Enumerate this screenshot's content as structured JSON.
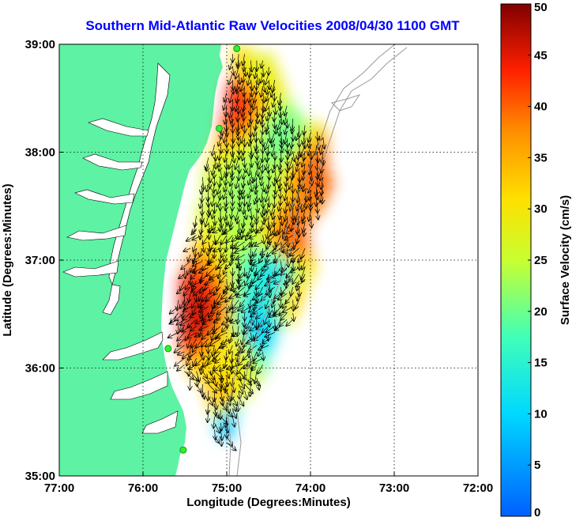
{
  "title": "Southern Mid-Atlantic Raw Velocities 2008/04/30 1100 GMT",
  "map": {
    "xlabel": "Longitude (Degrees:Minutes)",
    "ylabel": "Latitude (Degrees:Minutes)",
    "lon_range": [
      -77,
      -72
    ],
    "lat_range": [
      35,
      39
    ],
    "lon_ticks": [
      {
        "value": -77,
        "label": "77:00"
      },
      {
        "value": -76,
        "label": "76:00"
      },
      {
        "value": -75,
        "label": "75:00"
      },
      {
        "value": -74,
        "label": "74:00"
      },
      {
        "value": -73,
        "label": "73:00"
      },
      {
        "value": -72,
        "label": "72:00"
      }
    ],
    "lat_ticks": [
      {
        "value": 39,
        "label": "39:00"
      },
      {
        "value": 38,
        "label": "38:00"
      },
      {
        "value": 37,
        "label": "37:00"
      },
      {
        "value": 36,
        "label": "36:00"
      },
      {
        "value": 35,
        "label": "35:00"
      }
    ],
    "grid": true,
    "land_color": "#5ef2a4",
    "water_color": "#ffffff",
    "station_color": "#33ee33",
    "stations": [
      {
        "lon": -74.88,
        "lat": 38.96
      },
      {
        "lon": -75.09,
        "lat": 38.22
      },
      {
        "lon": -75.7,
        "lat": 36.18
      },
      {
        "lon": -75.52,
        "lat": 35.24
      }
    ]
  },
  "colorbar": {
    "label": "Surface Velocity (cm/s)",
    "min": 0,
    "max": 50,
    "ticks": [
      {
        "value": 0,
        "label": "0"
      },
      {
        "value": 5,
        "label": "5"
      },
      {
        "value": 10,
        "label": "10"
      },
      {
        "value": 15,
        "label": "15"
      },
      {
        "value": 20,
        "label": "20"
      },
      {
        "value": 25,
        "label": "25"
      },
      {
        "value": 30,
        "label": "30"
      },
      {
        "value": 35,
        "label": "35"
      },
      {
        "value": 40,
        "label": "40"
      },
      {
        "value": 45,
        "label": "45"
      },
      {
        "value": 50,
        "label": "50"
      }
    ]
  },
  "chart_data": {
    "type": "heatmap",
    "title": "Southern Mid-Atlantic Raw Velocities 2008/04/30 1100 GMT",
    "xlabel": "Longitude (Degrees:Minutes)",
    "ylabel": "Latitude (Degrees:Minutes)",
    "xlim": [
      -77,
      -72
    ],
    "ylim": [
      35,
      39
    ],
    "colorbar_range": [
      0,
      50
    ],
    "regions": [
      {
        "lon": -74.9,
        "lat": 38.5,
        "speed": 44
      },
      {
        "lon": -74.7,
        "lat": 38.7,
        "speed": 28
      },
      {
        "lon": -74.35,
        "lat": 38.1,
        "speed": 20
      },
      {
        "lon": -74.0,
        "lat": 37.8,
        "speed": 40
      },
      {
        "lon": -74.7,
        "lat": 37.6,
        "speed": 22
      },
      {
        "lon": -74.25,
        "lat": 37.2,
        "speed": 40
      },
      {
        "lon": -74.45,
        "lat": 36.8,
        "speed": 12
      },
      {
        "lon": -74.65,
        "lat": 36.35,
        "speed": 10
      },
      {
        "lon": -74.2,
        "lat": 36.6,
        "speed": 32
      },
      {
        "lon": -75.35,
        "lat": 36.45,
        "speed": 46
      },
      {
        "lon": -75.0,
        "lat": 36.1,
        "speed": 30
      },
      {
        "lon": -75.1,
        "lat": 35.7,
        "speed": 34
      },
      {
        "lon": -75.0,
        "lat": 35.45,
        "speed": 8
      }
    ]
  }
}
